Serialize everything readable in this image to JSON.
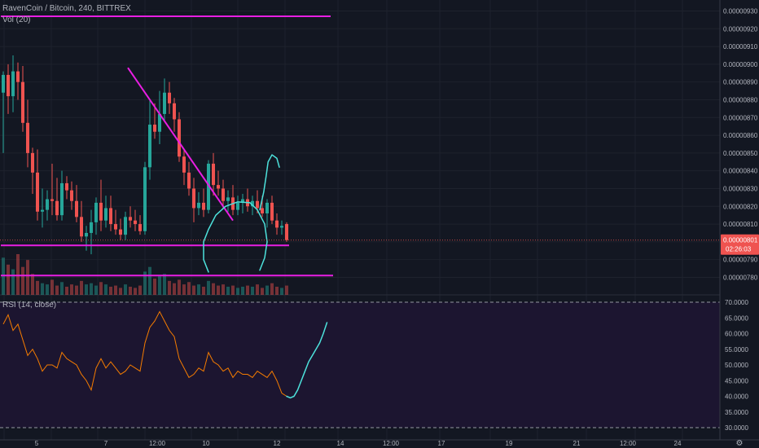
{
  "header": {
    "title": "RavenCoin / Bitcoin, 240, BITTREX",
    "volume_label": "Vol (20)",
    "rsi_label": "RSI (14, close)"
  },
  "price_axis": {
    "ticks": [
      "0.00000930",
      "0.00000920",
      "0.00000910",
      "0.00000900",
      "0.00000890",
      "0.00000880",
      "0.00000870",
      "0.00000860",
      "0.00000850",
      "0.00000840",
      "0.00000830",
      "0.00000820",
      "0.00000810",
      "0.00000790",
      "0.00000780"
    ],
    "last_price": "0.00000801",
    "countdown": "02:26:03"
  },
  "rsi_axis": {
    "ticks": [
      "70.0000",
      "65.0000",
      "60.0000",
      "55.0000",
      "50.0000",
      "45.0000",
      "40.0000",
      "35.0000",
      "30.0000"
    ]
  },
  "time_axis": {
    "ticks": [
      "5",
      "7",
      "12:00",
      "10",
      "12",
      "14",
      "12:00",
      "17",
      "19",
      "21",
      "12:00",
      "24"
    ]
  },
  "colors": {
    "background": "#131722",
    "rsi_background": "#1c1530",
    "up": "#26a69a",
    "down": "#ef5350",
    "trendline": "#e91ee3",
    "drawing": "#4de2dc",
    "rsi_line": "#f57c00",
    "last_price_badge": "#ef5350"
  },
  "chart_data": [
    {
      "type": "candlestick",
      "title": "RavenCoin / Bitcoin, 240, BITTREX",
      "ylim": [
        7.75e-06,
        9.33e-06
      ],
      "candles": [
        {
          "o": 884,
          "h": 896,
          "l": 850,
          "c": 894
        },
        {
          "o": 894,
          "h": 900,
          "l": 872,
          "c": 882
        },
        {
          "o": 882,
          "h": 905,
          "l": 873,
          "c": 896
        },
        {
          "o": 896,
          "h": 901,
          "l": 880,
          "c": 890
        },
        {
          "o": 890,
          "h": 899,
          "l": 862,
          "c": 867
        },
        {
          "o": 867,
          "h": 880,
          "l": 842,
          "c": 850
        },
        {
          "o": 850,
          "h": 853,
          "l": 827,
          "c": 839
        },
        {
          "o": 839,
          "h": 852,
          "l": 812,
          "c": 817
        },
        {
          "o": 817,
          "h": 830,
          "l": 808,
          "c": 818
        },
        {
          "o": 818,
          "h": 829,
          "l": 812,
          "c": 824
        },
        {
          "o": 824,
          "h": 844,
          "l": 815,
          "c": 823
        },
        {
          "o": 823,
          "h": 836,
          "l": 812,
          "c": 815
        },
        {
          "o": 815,
          "h": 840,
          "l": 812,
          "c": 833
        },
        {
          "o": 833,
          "h": 837,
          "l": 824,
          "c": 829
        },
        {
          "o": 829,
          "h": 834,
          "l": 818,
          "c": 823
        },
        {
          "o": 823,
          "h": 832,
          "l": 811,
          "c": 814
        },
        {
          "o": 814,
          "h": 823,
          "l": 800,
          "c": 803
        },
        {
          "o": 803,
          "h": 809,
          "l": 795,
          "c": 805
        },
        {
          "o": 805,
          "h": 818,
          "l": 793,
          "c": 811
        },
        {
          "o": 811,
          "h": 825,
          "l": 804,
          "c": 822
        },
        {
          "o": 822,
          "h": 835,
          "l": 806,
          "c": 812
        },
        {
          "o": 812,
          "h": 826,
          "l": 808,
          "c": 819
        },
        {
          "o": 819,
          "h": 826,
          "l": 806,
          "c": 810
        },
        {
          "o": 810,
          "h": 818,
          "l": 804,
          "c": 807
        },
        {
          "o": 807,
          "h": 813,
          "l": 801,
          "c": 804
        },
        {
          "o": 804,
          "h": 817,
          "l": 801,
          "c": 814
        },
        {
          "o": 814,
          "h": 820,
          "l": 808,
          "c": 812
        },
        {
          "o": 812,
          "h": 818,
          "l": 806,
          "c": 810
        },
        {
          "o": 810,
          "h": 815,
          "l": 804,
          "c": 806
        },
        {
          "o": 806,
          "h": 845,
          "l": 804,
          "c": 842
        },
        {
          "o": 842,
          "h": 880,
          "l": 835,
          "c": 866
        },
        {
          "o": 866,
          "h": 878,
          "l": 858,
          "c": 862
        },
        {
          "o": 862,
          "h": 885,
          "l": 855,
          "c": 872
        },
        {
          "o": 872,
          "h": 892,
          "l": 868,
          "c": 884
        },
        {
          "o": 884,
          "h": 890,
          "l": 872,
          "c": 878
        },
        {
          "o": 878,
          "h": 881,
          "l": 862,
          "c": 869
        },
        {
          "o": 869,
          "h": 873,
          "l": 845,
          "c": 848
        },
        {
          "o": 848,
          "h": 852,
          "l": 832,
          "c": 839
        },
        {
          "o": 839,
          "h": 845,
          "l": 826,
          "c": 830
        },
        {
          "o": 830,
          "h": 836,
          "l": 811,
          "c": 819
        },
        {
          "o": 819,
          "h": 828,
          "l": 815,
          "c": 822
        },
        {
          "o": 822,
          "h": 830,
          "l": 814,
          "c": 818
        },
        {
          "o": 818,
          "h": 846,
          "l": 816,
          "c": 844
        },
        {
          "o": 844,
          "h": 850,
          "l": 826,
          "c": 832
        },
        {
          "o": 832,
          "h": 840,
          "l": 826,
          "c": 830
        },
        {
          "o": 830,
          "h": 835,
          "l": 819,
          "c": 823
        },
        {
          "o": 823,
          "h": 829,
          "l": 817,
          "c": 825
        },
        {
          "o": 825,
          "h": 832,
          "l": 815,
          "c": 818
        },
        {
          "o": 818,
          "h": 826,
          "l": 815,
          "c": 822
        },
        {
          "o": 822,
          "h": 827,
          "l": 816,
          "c": 824
        },
        {
          "o": 824,
          "h": 830,
          "l": 817,
          "c": 820
        },
        {
          "o": 820,
          "h": 826,
          "l": 815,
          "c": 823
        },
        {
          "o": 823,
          "h": 829,
          "l": 816,
          "c": 819
        },
        {
          "o": 819,
          "h": 826,
          "l": 814,
          "c": 816
        },
        {
          "o": 816,
          "h": 824,
          "l": 808,
          "c": 822
        },
        {
          "o": 822,
          "h": 826,
          "l": 810,
          "c": 812
        },
        {
          "o": 812,
          "h": 816,
          "l": 804,
          "c": 808
        },
        {
          "o": 808,
          "h": 812,
          "l": 804,
          "c": 809
        },
        {
          "o": 810,
          "h": 811,
          "l": 800,
          "c": 801
        }
      ],
      "volume": [
        3.2,
        2.6,
        2.2,
        3.5,
        2.4,
        3.0,
        1.8,
        1.2,
        1.0,
        0.9,
        1.3,
        0.8,
        1.1,
        0.7,
        0.9,
        0.8,
        1.2,
        0.9,
        1.0,
        0.8,
        1.1,
        0.9,
        0.7,
        0.8,
        0.6,
        0.9,
        0.7,
        0.6,
        0.8,
        2.0,
        2.4,
        1.4,
        1.6,
        1.8,
        1.2,
        1.0,
        1.3,
        0.9,
        1.1,
        0.8,
        0.9,
        0.7,
        1.2,
        1.0,
        0.8,
        0.9,
        0.7,
        0.8,
        0.6,
        0.7,
        0.8,
        0.7,
        0.9,
        0.6,
        0.8,
        1.0,
        0.7,
        0.6,
        0.8
      ],
      "trendlines": [
        {
          "from": [
            -0.5,
            927
          ],
          "to": [
            67,
            927
          ]
        },
        {
          "from": [
            25.5,
            898
          ],
          "to": [
            47,
            812
          ]
        },
        {
          "from": [
            -0.5,
            798
          ],
          "to": [
            58.5,
            798
          ]
        },
        {
          "from": [
            -0.5,
            781
          ],
          "to": [
            67.5,
            781
          ]
        }
      ],
      "drawings": [
        {
          "type": "freehand",
          "points": [
            [
              42,
              783
            ],
            [
              41,
              790
            ],
            [
              41,
              800
            ],
            [
              42,
              807
            ],
            [
              43.5,
              815
            ],
            [
              45.5,
              820
            ],
            [
              48,
              822.5
            ],
            [
              50.5,
              822
            ],
            [
              52,
              818
            ],
            [
              53.5,
              810
            ],
            [
              54,
              800
            ],
            [
              53.5,
              791
            ],
            [
              52.5,
              784
            ]
          ]
        },
        {
          "type": "freehand",
          "points": [
            [
              52.5,
              818
            ],
            [
              53.3,
              828
            ],
            [
              53.8,
              837
            ],
            [
              54.2,
              845
            ],
            [
              55,
              849
            ],
            [
              56,
              847
            ],
            [
              56.5,
              842
            ]
          ]
        }
      ]
    },
    {
      "type": "line",
      "title": "RSI (14, close)",
      "ylim": [
        28.5,
        71.5
      ],
      "bands": [
        70,
        30
      ],
      "series": [
        {
          "name": "RSI",
          "values": [
            63,
            66,
            61,
            63,
            58,
            53,
            55,
            52,
            48,
            50,
            50,
            49,
            54,
            52,
            51,
            50,
            47,
            45,
            42,
            49,
            52,
            49,
            51,
            49,
            47,
            48,
            50,
            49,
            48,
            57,
            62,
            64,
            67,
            64,
            61,
            59,
            52,
            49,
            46,
            47,
            49,
            48,
            54,
            51,
            50,
            48,
            49,
            46,
            48,
            47,
            47,
            46,
            48,
            47,
            46,
            48,
            45,
            41,
            40
          ]
        },
        {
          "name": "Projection",
          "values": [
            40,
            39.5,
            40,
            42,
            45,
            48,
            51,
            53,
            55,
            57,
            60,
            63.5
          ],
          "x_start": 58
        }
      ]
    }
  ]
}
